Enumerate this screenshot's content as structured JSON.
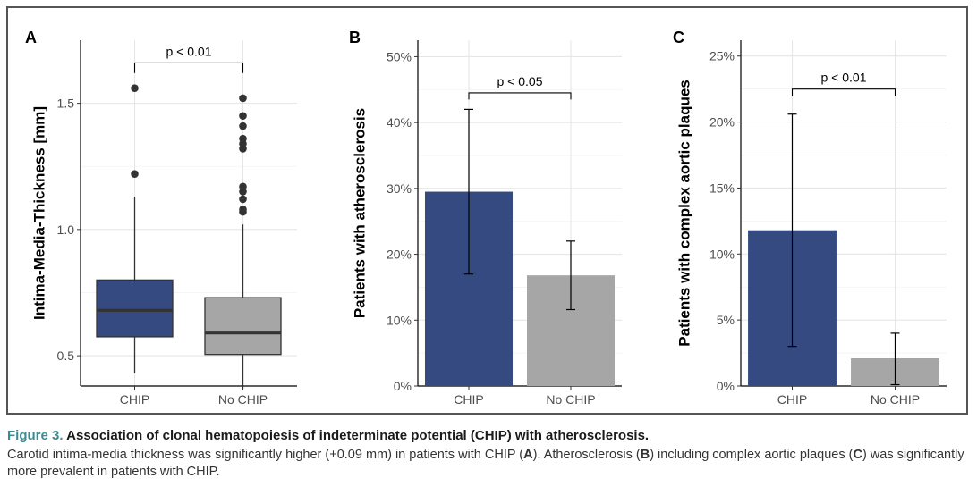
{
  "chart_data": [
    {
      "panel": "A",
      "type": "box",
      "title": "",
      "xlabel": "",
      "ylabel": "Intima-Media-Thickness [mm]",
      "categories": [
        "CHIP",
        "No CHIP"
      ],
      "ylim": [
        0.38,
        1.75
      ],
      "yticks": [
        0.5,
        1.0,
        1.5
      ],
      "ytick_labels": [
        "0.5",
        "1.0",
        "1.5"
      ],
      "grid": true,
      "boxes": [
        {
          "category": "CHIP",
          "color": "#354a80",
          "whisker_low": 0.43,
          "q1": 0.575,
          "median": 0.68,
          "q3": 0.8,
          "whisker_high": 1.13,
          "outliers": [
            1.22,
            1.56
          ]
        },
        {
          "category": "No CHIP",
          "color": "#a6a6a6",
          "whisker_low": 0.37,
          "q1": 0.505,
          "median": 0.59,
          "q3": 0.73,
          "whisker_high": 1.02,
          "outliers": [
            1.07,
            1.08,
            1.12,
            1.15,
            1.17,
            1.32,
            1.34,
            1.36,
            1.41,
            1.45,
            1.52
          ]
        }
      ],
      "significance": {
        "text": "p < 0.01",
        "y": 1.66,
        "tick_bottom": 1.62
      }
    },
    {
      "panel": "B",
      "type": "bar",
      "title": "",
      "xlabel": "",
      "ylabel": "Patients with atherosclerosis",
      "categories": [
        "CHIP",
        "No CHIP"
      ],
      "values": [
        29.5,
        16.8
      ],
      "error_low": [
        17.0,
        11.6
      ],
      "error_high": [
        42.0,
        22.0
      ],
      "colors": [
        "#354a80",
        "#a6a6a6"
      ],
      "ylim": [
        0,
        52.5
      ],
      "yticks": [
        0,
        10,
        20,
        30,
        40,
        50
      ],
      "ytick_labels": [
        "0%",
        "10%",
        "20%",
        "30%",
        "40%",
        "50%"
      ],
      "grid": true,
      "significance": {
        "text": "p < 0.05",
        "y": 44.5,
        "tick_bottom": 43.5
      }
    },
    {
      "panel": "C",
      "type": "bar",
      "title": "",
      "xlabel": "",
      "ylabel": "Patients with complex aortic plaques",
      "categories": [
        "CHIP",
        "No CHIP"
      ],
      "values": [
        11.8,
        2.1
      ],
      "error_low": [
        3.0,
        0.1
      ],
      "error_high": [
        20.6,
        4.0
      ],
      "colors": [
        "#354a80",
        "#a6a6a6"
      ],
      "ylim": [
        0,
        26.2
      ],
      "yticks": [
        0,
        5,
        10,
        15,
        20,
        25
      ],
      "ytick_labels": [
        "0%",
        "5%",
        "10%",
        "15%",
        "20%",
        "25%"
      ],
      "grid": true,
      "significance": {
        "text": "p < 0.01",
        "y": 22.5,
        "tick_bottom": 22.0
      }
    }
  ],
  "caption": {
    "label": "Figure 3.",
    "title": "Association of clonal hematopoiesis of indeterminate potential (CHIP) with atherosclerosis.",
    "body_1": "Carotid intima-media thickness was significantly higher (+0.09 mm) in patients with CHIP (",
    "ref_a": "A",
    "body_2": "). Atherosclerosis (",
    "ref_b": "B",
    "body_3": ") including complex aortic plaques (",
    "ref_c": "C",
    "body_4": ") was significantly more prevalent in patients with CHIP."
  }
}
